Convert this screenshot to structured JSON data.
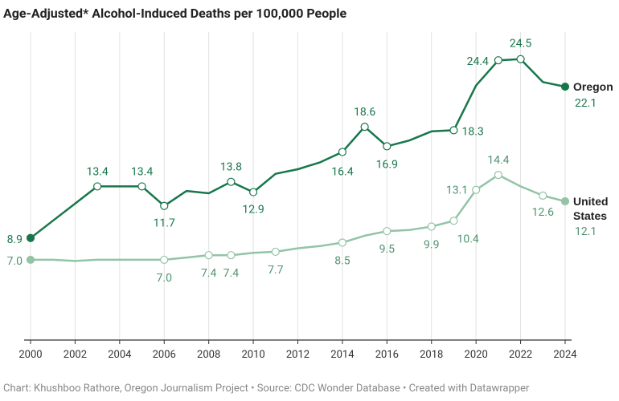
{
  "chart_data": {
    "type": "line",
    "title": "Age-Adjusted* Alcohol-Induced Deaths per 100,000 People",
    "source": "Chart: Khushboo Rathore, Oregon Journalism Project • Source: CDC Wonder Database • Created with Datawrapper",
    "x": [
      2000,
      2001,
      2002,
      2003,
      2004,
      2005,
      2006,
      2007,
      2008,
      2009,
      2010,
      2011,
      2012,
      2013,
      2014,
      2015,
      2016,
      2017,
      2018,
      2019,
      2020,
      2021,
      2022,
      2023,
      2024
    ],
    "xlim": [
      2000,
      2024
    ],
    "xticks": [
      2000,
      2002,
      2004,
      2006,
      2008,
      2010,
      2012,
      2014,
      2016,
      2018,
      2020,
      2022,
      2024
    ],
    "ylim": [
      0,
      27
    ],
    "grid": true,
    "series": [
      {
        "name": "Oregon",
        "color": "#17774a",
        "values": [
          8.9,
          10.4,
          11.9,
          13.4,
          13.4,
          13.4,
          11.7,
          13.0,
          12.8,
          13.8,
          12.9,
          14.5,
          14.9,
          15.5,
          16.4,
          18.6,
          16.9,
          17.4,
          18.2,
          18.3,
          22.2,
          24.4,
          24.5,
          22.5,
          22.1
        ],
        "value_labels": [
          "8.9",
          null,
          null,
          "13.4",
          null,
          "13.4",
          "11.7",
          null,
          null,
          "13.8",
          "12.9",
          null,
          null,
          null,
          "16.4",
          "18.6",
          "16.9",
          null,
          null,
          "18.3",
          null,
          "24.4",
          "24.5",
          null,
          "22.1"
        ]
      },
      {
        "name": "United States",
        "color": "#93c4a6",
        "values": [
          7.0,
          7.0,
          6.9,
          7.0,
          7.0,
          7.0,
          7.0,
          7.2,
          7.4,
          7.4,
          7.6,
          7.7,
          8.0,
          8.2,
          8.5,
          9.1,
          9.5,
          9.6,
          9.9,
          10.4,
          13.1,
          14.4,
          13.4,
          12.6,
          12.1
        ],
        "value_labels": [
          "7.0",
          null,
          null,
          null,
          null,
          null,
          "7.0",
          null,
          "7.4",
          "7.4",
          null,
          "7.7",
          null,
          null,
          "8.5",
          null,
          "9.5",
          null,
          "9.9",
          "10.4",
          "13.1",
          "14.4",
          null,
          "12.6",
          "12.1"
        ]
      }
    ]
  }
}
